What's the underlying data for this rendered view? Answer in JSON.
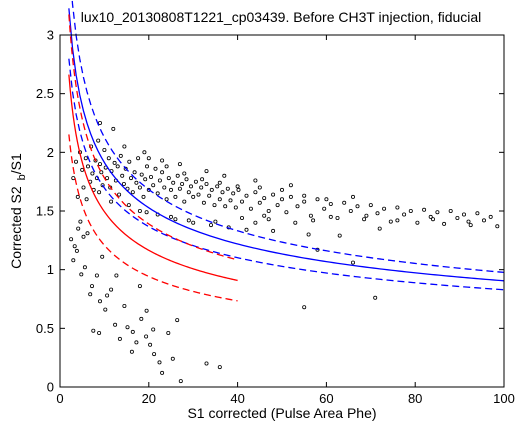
{
  "chart_data": {
    "type": "scatter",
    "title": "lux10_20130808T1221_cp03439. Before CH3T injection, fiducial",
    "xlabel": "S1 corrected (Pulse Area Phe)",
    "ylabel_main": "Corrected S2",
    "ylabel_sub": "b",
    "ylabel_tail": "/S1",
    "xlim": [
      0,
      100
    ],
    "ylim": [
      0,
      3
    ],
    "xticks": [
      0,
      20,
      40,
      60,
      80,
      100
    ],
    "yticks": [
      0,
      0.5,
      1,
      1.5,
      2,
      2.5,
      3
    ],
    "xtick_labels": [
      "0",
      "20",
      "40",
      "60",
      "80",
      "100"
    ],
    "ytick_labels": [
      "0",
      "0.5",
      "1",
      "1.5",
      "2",
      "2.5",
      "3"
    ],
    "grid": false,
    "colors": {
      "band_blue": "#0000ff",
      "band_red": "#ff0000",
      "points": "#000000"
    },
    "curves": [
      {
        "color": "blue",
        "style": "solid",
        "x_range": [
          2,
          100
        ],
        "a": 1.913,
        "b": 0.325
      },
      {
        "color": "blue",
        "style": "dashed",
        "x_range": [
          2,
          100
        ],
        "a": 2.127,
        "b": 0.338
      },
      {
        "color": "blue",
        "style": "dashed",
        "x_range": [
          2,
          100
        ],
        "a": 1.696,
        "b": 0.311
      },
      {
        "color": "red",
        "style": "solid",
        "x_range": [
          2,
          40
        ],
        "a": 1.494,
        "b": 0.359
      },
      {
        "color": "red",
        "style": "dashed",
        "x_range": [
          2,
          40
        ],
        "a": 1.782,
        "b": 0.359
      },
      {
        "color": "red",
        "style": "dashed",
        "x_range": [
          2,
          40
        ],
        "a": 1.208,
        "b": 0.359
      }
    ],
    "points": [
      [
        3.0,
        1.78
      ],
      [
        3.6,
        1.92
      ],
      [
        4.0,
        1.62
      ],
      [
        4.5,
        2.0
      ],
      [
        5.0,
        1.85
      ],
      [
        5.3,
        1.7
      ],
      [
        5.8,
        1.95
      ],
      [
        6.0,
        1.6
      ],
      [
        6.3,
        1.88
      ],
      [
        6.8,
        1.75
      ],
      [
        7.0,
        2.05
      ],
      [
        7.3,
        1.82
      ],
      [
        7.6,
        1.68
      ],
      [
        8.0,
        1.93
      ],
      [
        8.3,
        1.78
      ],
      [
        8.6,
        2.1
      ],
      [
        8.8,
        1.66
      ],
      [
        9.0,
        1.9
      ],
      [
        9.3,
        1.83
      ],
      [
        9.6,
        1.72
      ],
      [
        10.0,
        2.02
      ],
      [
        10.3,
        1.87
      ],
      [
        10.6,
        1.78
      ],
      [
        11.0,
        1.95
      ],
      [
        11.3,
        1.7
      ],
      [
        11.6,
        1.84
      ],
      [
        12.0,
        2.2
      ],
      [
        12.3,
        1.91
      ],
      [
        12.6,
        1.76
      ],
      [
        13.0,
        1.88
      ],
      [
        13.3,
        1.64
      ],
      [
        13.7,
        1.97
      ],
      [
        14.0,
        1.8
      ],
      [
        14.4,
        1.73
      ],
      [
        14.8,
        1.86
      ],
      [
        15.2,
        1.69
      ],
      [
        15.6,
        1.92
      ],
      [
        16.0,
        1.78
      ],
      [
        16.4,
        1.66
      ],
      [
        16.8,
        1.83
      ],
      [
        17.2,
        1.74
      ],
      [
        17.6,
        1.95
      ],
      [
        18.0,
        1.7
      ],
      [
        18.4,
        1.81
      ],
      [
        18.8,
        1.62
      ],
      [
        19.2,
        1.77
      ],
      [
        19.6,
        1.88
      ],
      [
        20.0,
        1.68
      ],
      [
        20.5,
        1.79
      ],
      [
        21.0,
        1.72
      ],
      [
        21.5,
        1.86
      ],
      [
        22.0,
        1.65
      ],
      [
        22.5,
        1.76
      ],
      [
        23.0,
        1.83
      ],
      [
        23.5,
        1.7
      ],
      [
        24.0,
        1.6
      ],
      [
        24.5,
        1.78
      ],
      [
        25.0,
        1.68
      ],
      [
        25.5,
        1.74
      ],
      [
        26.0,
        1.62
      ],
      [
        26.5,
        1.8
      ],
      [
        27.0,
        1.69
      ],
      [
        27.5,
        1.73
      ],
      [
        28.0,
        1.58
      ],
      [
        28.5,
        1.77
      ],
      [
        29.0,
        1.66
      ],
      [
        29.5,
        1.71
      ],
      [
        30.0,
        1.62
      ],
      [
        30.6,
        1.75
      ],
      [
        31.2,
        1.64
      ],
      [
        31.8,
        1.7
      ],
      [
        32.4,
        1.57
      ],
      [
        33.0,
        1.73
      ],
      [
        33.6,
        1.63
      ],
      [
        34.2,
        1.68
      ],
      [
        34.8,
        1.55
      ],
      [
        35.4,
        1.71
      ],
      [
        36.0,
        1.6
      ],
      [
        36.6,
        1.66
      ],
      [
        37.2,
        1.54
      ],
      [
        37.8,
        1.69
      ],
      [
        38.4,
        1.59
      ],
      [
        39.0,
        1.65
      ],
      [
        39.6,
        1.53
      ],
      [
        40.2,
        1.68
      ],
      [
        41.0,
        1.58
      ],
      [
        42.0,
        1.63
      ],
      [
        43.0,
        1.52
      ],
      [
        44.0,
        1.66
      ],
      [
        45.0,
        1.57
      ],
      [
        46.0,
        1.61
      ],
      [
        47.0,
        1.5
      ],
      [
        48.0,
        1.64
      ],
      [
        49.0,
        1.55
      ],
      [
        50.0,
        1.6
      ],
      [
        51.0,
        1.49
      ],
      [
        52.0,
        1.62
      ],
      [
        53.5,
        1.54
      ],
      [
        55.0,
        1.58
      ],
      [
        56.5,
        1.46
      ],
      [
        58.0,
        1.6
      ],
      [
        59.5,
        1.52
      ],
      [
        61.0,
        1.56
      ],
      [
        62.5,
        1.44
      ],
      [
        64.0,
        1.57
      ],
      [
        65.5,
        1.5
      ],
      [
        67.0,
        1.54
      ],
      [
        68.5,
        1.43
      ],
      [
        70.0,
        1.55
      ],
      [
        71.5,
        1.48
      ],
      [
        73.0,
        1.52
      ],
      [
        74.5,
        1.41
      ],
      [
        76.0,
        1.53
      ],
      [
        77.5,
        1.47
      ],
      [
        79.0,
        1.5
      ],
      [
        80.5,
        1.4
      ],
      [
        82.0,
        1.51
      ],
      [
        83.5,
        1.45
      ],
      [
        85.0,
        1.49
      ],
      [
        86.5,
        1.39
      ],
      [
        88.0,
        1.5
      ],
      [
        89.5,
        1.44
      ],
      [
        91.0,
        1.47
      ],
      [
        92.5,
        1.38
      ],
      [
        94.0,
        1.48
      ],
      [
        95.5,
        1.42
      ],
      [
        97.0,
        1.45
      ],
      [
        98.5,
        1.37
      ],
      [
        20.0,
        1.95
      ],
      [
        24.0,
        1.88
      ],
      [
        28.0,
        1.82
      ],
      [
        32.0,
        1.77
      ],
      [
        36.0,
        1.74
      ],
      [
        40.0,
        1.71
      ],
      [
        45.0,
        1.7
      ],
      [
        50.0,
        1.68
      ],
      [
        55.0,
        1.63
      ],
      [
        60.0,
        1.6
      ],
      [
        18.0,
        1.5
      ],
      [
        22.0,
        1.47
      ],
      [
        26.0,
        1.43
      ],
      [
        30.0,
        1.4
      ],
      [
        34.0,
        1.38
      ],
      [
        38.0,
        1.36
      ],
      [
        42.0,
        1.34
      ],
      [
        48.0,
        1.33
      ],
      [
        56.0,
        1.3
      ],
      [
        63.0,
        1.29
      ],
      [
        9.0,
        2.25
      ],
      [
        14.5,
        2.05
      ],
      [
        19.0,
        2.0
      ],
      [
        23.0,
        1.93
      ],
      [
        27.0,
        1.9
      ],
      [
        33.0,
        1.84
      ],
      [
        37.0,
        1.8
      ],
      [
        44.0,
        1.76
      ],
      [
        52.0,
        1.72
      ],
      [
        66.0,
        1.62
      ],
      [
        11.5,
        1.58
      ],
      [
        15.5,
        1.55
      ],
      [
        19.5,
        1.49
      ],
      [
        25.0,
        1.45
      ],
      [
        29.0,
        1.42
      ],
      [
        35.0,
        1.41
      ],
      [
        41.0,
        1.44
      ],
      [
        46.0,
        1.46
      ],
      [
        53.0,
        1.4
      ],
      [
        72.0,
        1.35
      ],
      [
        44.0,
        1.4
      ],
      [
        47.0,
        1.43
      ],
      [
        57.0,
        1.42
      ],
      [
        61.0,
        1.45
      ],
      [
        69.0,
        1.46
      ],
      [
        76.0,
        1.42
      ],
      [
        84.0,
        1.43
      ],
      [
        92.0,
        1.41
      ],
      [
        58.0,
        1.17
      ],
      [
        66.0,
        1.06
      ],
      [
        2.5,
        1.26
      ],
      [
        3.0,
        1.08
      ],
      [
        3.3,
        1.2
      ],
      [
        3.8,
        1.16
      ],
      [
        4.1,
        1.35
      ],
      [
        4.6,
        1.41
      ],
      [
        5.3,
        1.28
      ],
      [
        4.8,
        0.96
      ],
      [
        5.6,
        1.02
      ],
      [
        6.2,
        1.31
      ],
      [
        7.2,
        0.86
      ],
      [
        6.8,
        0.79
      ],
      [
        8.3,
        0.95
      ],
      [
        9.0,
        0.73
      ],
      [
        10.2,
        0.66
      ],
      [
        10.6,
        0.78
      ],
      [
        11.5,
        0.83
      ],
      [
        12.4,
        0.53
      ],
      [
        13.5,
        0.41
      ],
      [
        15.2,
        0.51
      ],
      [
        16.4,
        0.47
      ],
      [
        17.2,
        0.38
      ],
      [
        18.3,
        0.58
      ],
      [
        19.4,
        0.43
      ],
      [
        20.3,
        0.36
      ],
      [
        21.2,
        0.28
      ],
      [
        22.4,
        0.21
      ],
      [
        23.0,
        0.12
      ],
      [
        24.4,
        0.46
      ],
      [
        26.4,
        0.57
      ],
      [
        25.4,
        0.24
      ],
      [
        27.2,
        0.05
      ],
      [
        18.0,
        0.86
      ],
      [
        19.5,
        0.65
      ],
      [
        21.0,
        0.49
      ],
      [
        14.5,
        0.69
      ],
      [
        12.7,
        0.95
      ],
      [
        9.5,
        1.11
      ],
      [
        7.5,
        0.48
      ],
      [
        8.8,
        0.46
      ],
      [
        16.2,
        0.3
      ],
      [
        33.0,
        0.2
      ],
      [
        36.0,
        0.17
      ],
      [
        55.0,
        0.68
      ],
      [
        71.0,
        0.76
      ]
    ]
  }
}
